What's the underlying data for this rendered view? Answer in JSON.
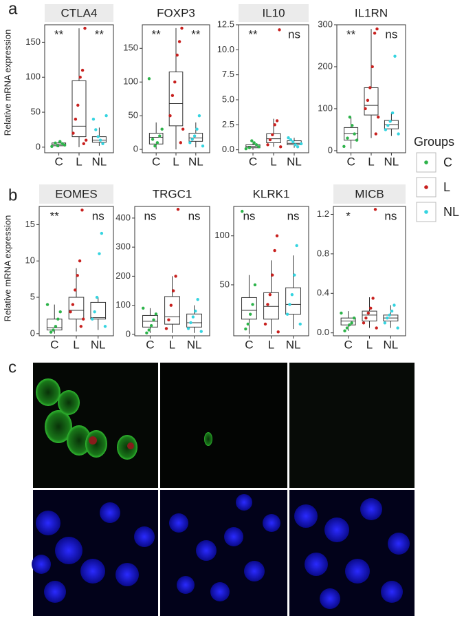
{
  "panel_labels": [
    "a",
    "b",
    "c"
  ],
  "legend": {
    "title": "Groups",
    "entries": [
      "C",
      "L",
      "NL"
    ],
    "colors": [
      "#2db34a",
      "#c8201e",
      "#35d4e0"
    ]
  },
  "chart_data": [
    {
      "type": "box",
      "title": "CTLA4",
      "title_highlight": true,
      "ylabel": "Relative mRNA expression",
      "categories": [
        "C",
        "L",
        "NL"
      ],
      "colors": [
        "#2db34a",
        "#c8201e",
        "#35d4e0"
      ],
      "significance": [
        "**",
        null,
        "**"
      ],
      "ylim": [
        -8,
        175
      ],
      "yticks": [
        0,
        50,
        100,
        150
      ],
      "boxes": [
        {
          "q1": 2,
          "median": 4,
          "q3": 6,
          "whislo": 0,
          "whishi": 8
        },
        {
          "q1": 15,
          "median": 30,
          "q3": 95,
          "whislo": 0,
          "whishi": 170
        },
        {
          "q1": 7,
          "median": 10,
          "q3": 15,
          "whislo": 2,
          "whishi": 28
        }
      ],
      "points": [
        [
          1,
          3,
          5,
          8,
          2,
          6
        ],
        [
          170,
          110,
          100,
          60,
          40,
          20,
          10,
          5
        ],
        [
          5,
          10,
          15,
          25,
          40,
          45
        ]
      ]
    },
    {
      "type": "box",
      "title": "FOXP3",
      "title_highlight": false,
      "categories": [
        "C",
        "L",
        "NL"
      ],
      "colors": [
        "#2db34a",
        "#c8201e",
        "#35d4e0"
      ],
      "significance": [
        "**",
        null,
        "**"
      ],
      "ylim": [
        -5,
        185
      ],
      "yticks": [
        0,
        50,
        100,
        150
      ],
      "boxes": [
        {
          "q1": 8,
          "median": 18,
          "q3": 24,
          "whislo": 0,
          "whishi": 40
        },
        {
          "q1": 35,
          "median": 68,
          "q3": 115,
          "whislo": 0,
          "whishi": 180
        },
        {
          "q1": 12,
          "median": 17,
          "q3": 24,
          "whislo": 3,
          "whishi": 40
        }
      ],
      "points": [
        [
          105,
          30,
          20,
          10,
          5,
          15
        ],
        [
          180,
          160,
          140,
          100,
          80,
          50,
          30,
          10
        ],
        [
          50,
          30,
          20,
          15,
          10,
          5
        ]
      ]
    },
    {
      "type": "box",
      "title": "IL10",
      "title_highlight": true,
      "categories": [
        "C",
        "L",
        "NL"
      ],
      "colors": [
        "#2db34a",
        "#c8201e",
        "#35d4e0"
      ],
      "significance": [
        "**",
        null,
        "ns"
      ],
      "ylim": [
        -0.3,
        12.5
      ],
      "yticks": [
        {
          "value": 0,
          "label": "0.0"
        },
        2.5,
        {
          "value": 5,
          "label": "5.0"
        },
        7.5,
        {
          "value": 10,
          "label": "10.0"
        },
        12.5
      ],
      "boxes": [
        {
          "q1": 0.2,
          "median": 0.35,
          "q3": 0.5,
          "whislo": 0,
          "whishi": 0.8
        },
        {
          "q1": 0.7,
          "median": 1.1,
          "q3": 1.6,
          "whislo": 0.3,
          "whishi": 3.1
        },
        {
          "q1": 0.5,
          "median": 0.65,
          "q3": 0.9,
          "whislo": 0.2,
          "whishi": 1.2
        }
      ],
      "points": [
        [
          0.1,
          0.3,
          0.5,
          0.7,
          0.9,
          0.2
        ],
        [
          12,
          2.9,
          2.5,
          1.5,
          1,
          0.5,
          0.3
        ],
        [
          0.3,
          0.5,
          0.8,
          1,
          1.2,
          0.6
        ]
      ]
    },
    {
      "type": "box",
      "title": "IL1RN",
      "title_highlight": false,
      "categories": [
        "C",
        "L",
        "NL"
      ],
      "colors": [
        "#2db34a",
        "#c8201e",
        "#35d4e0"
      ],
      "significance": [
        "**",
        null,
        "ns"
      ],
      "ylim": [
        -5,
        300
      ],
      "yticks": [
        0,
        100,
        200,
        300
      ],
      "boxes": [
        {
          "q1": 25,
          "median": 40,
          "q3": 55,
          "whislo": 5,
          "whishi": 80
        },
        {
          "q1": 85,
          "median": 108,
          "q3": 150,
          "whislo": 30,
          "whishi": 290
        },
        {
          "q1": 52,
          "median": 62,
          "q3": 72,
          "whislo": 35,
          "whishi": 90
        }
      ],
      "points": [
        [
          10,
          25,
          40,
          60,
          80,
          30
        ],
        [
          290,
          280,
          200,
          150,
          120,
          100,
          80,
          40
        ],
        [
          225,
          90,
          70,
          60,
          50,
          40
        ]
      ]
    },
    {
      "type": "box",
      "title": "EOMES",
      "title_highlight": true,
      "ylabel": "Relative mRNA expression",
      "categories": [
        "C",
        "L",
        "NL"
      ],
      "colors": [
        "#2db34a",
        "#c8201e",
        "#35d4e0"
      ],
      "significance": [
        "**",
        null,
        "ns"
      ],
      "ylim": [
        -0.3,
        17.5
      ],
      "yticks": [
        0,
        5,
        10,
        15
      ],
      "boxes": [
        {
          "q1": 0.5,
          "median": 0.8,
          "q3": 2,
          "whislo": 0,
          "whishi": 4
        },
        {
          "q1": 2,
          "median": 3.2,
          "q3": 5,
          "whislo": 0.3,
          "whishi": 9
        },
        {
          "q1": 2,
          "median": 2.2,
          "q3": 4.3,
          "whislo": 0.5,
          "whishi": 5
        }
      ],
      "points": [
        [
          4,
          3,
          2,
          1,
          0.5,
          0.2
        ],
        [
          17,
          10,
          8,
          6,
          4,
          3,
          2,
          1
        ],
        [
          13.8,
          11,
          5,
          3,
          2,
          1
        ]
      ]
    },
    {
      "type": "box",
      "title": "TRGC1",
      "title_highlight": false,
      "categories": [
        "C",
        "L",
        "NL"
      ],
      "colors": [
        "#2db34a",
        "#c8201e",
        "#35d4e0"
      ],
      "significance": [
        "ns",
        null,
        "ns"
      ],
      "ylim": [
        -5,
        440
      ],
      "yticks": [
        0,
        100,
        200,
        300,
        400
      ],
      "boxes": [
        {
          "q1": 25,
          "median": 45,
          "q3": 65,
          "whislo": 5,
          "whishi": 90
        },
        {
          "q1": 35,
          "median": 60,
          "q3": 130,
          "whislo": 5,
          "whishi": 200
        },
        {
          "q1": 25,
          "median": 40,
          "q3": 70,
          "whislo": 5,
          "whishi": 100
        }
      ],
      "points": [
        [
          90,
          70,
          50,
          30,
          15,
          5
        ],
        [
          430,
          200,
          150,
          100,
          50,
          20
        ],
        [
          120,
          80,
          60,
          40,
          20,
          10
        ]
      ]
    },
    {
      "type": "box",
      "title": "KLRK1",
      "title_highlight": false,
      "categories": [
        "C",
        "L",
        "NL"
      ],
      "colors": [
        "#2db34a",
        "#c8201e",
        "#35d4e0"
      ],
      "significance": [
        "ns",
        null,
        "ns"
      ],
      "ylim": [
        -2,
        130
      ],
      "yticks": [
        50,
        100
      ],
      "boxes": [
        {
          "q1": 15,
          "median": 24,
          "q3": 37,
          "whislo": 0,
          "whishi": 60
        },
        {
          "q1": 15,
          "median": 28,
          "q3": 42,
          "whislo": 0,
          "whishi": 75
        },
        {
          "q1": 20,
          "median": 30,
          "q3": 47,
          "whislo": 5,
          "whishi": 80
        }
      ],
      "points": [
        [
          125,
          50,
          30,
          20,
          10,
          5
        ],
        [
          100,
          85,
          60,
          40,
          30,
          10,
          2
        ],
        [
          90,
          60,
          40,
          30,
          20,
          10
        ]
      ]
    },
    {
      "type": "box",
      "title": "MICB",
      "title_highlight": true,
      "categories": [
        "C",
        "L",
        "NL"
      ],
      "colors": [
        "#2db34a",
        "#c8201e",
        "#35d4e0"
      ],
      "significance": [
        "*",
        null,
        "ns"
      ],
      "ylim": [
        -0.03,
        1.28
      ],
      "yticks": [
        {
          "value": 0,
          "label": "0.0"
        },
        0.4,
        0.8,
        1.2
      ],
      "boxes": [
        {
          "q1": 0.08,
          "median": 0.12,
          "q3": 0.15,
          "whislo": 0.02,
          "whishi": 0.22
        },
        {
          "q1": 0.12,
          "median": 0.18,
          "q3": 0.22,
          "whislo": 0.05,
          "whishi": 0.36
        },
        {
          "q1": 0.12,
          "median": 0.15,
          "q3": 0.18,
          "whislo": 0.05,
          "whishi": 0.28
        }
      ],
      "points": [
        [
          0.2,
          0.15,
          0.1,
          0.08,
          0.05,
          0.02
        ],
        [
          1.25,
          0.35,
          0.25,
          0.2,
          0.15,
          0.1,
          0.05
        ],
        [
          0.28,
          0.22,
          0.18,
          0.15,
          0.1,
          0.05
        ]
      ]
    }
  ]
}
